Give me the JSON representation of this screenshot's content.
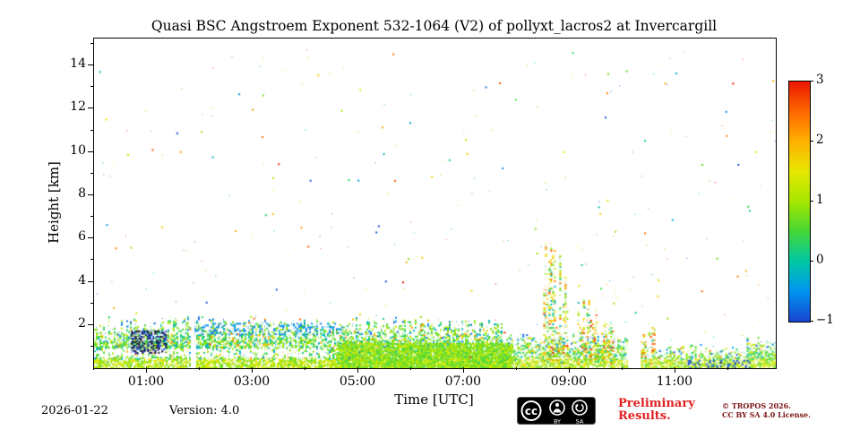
{
  "colors": {
    "preliminary_red": "#e02020",
    "copyright_red": "#7a1414",
    "axis_color": "#000000",
    "background": "#ffffff"
  },
  "footer": {
    "date": "2026-01-22",
    "version": "Version: 4.0",
    "preliminary": [
      "Preliminary",
      "Results."
    ],
    "tropos": [
      "© TROPOS 2026.",
      "CC BY SA 4.0 License."
    ],
    "cc_badge": {
      "cc": "cc",
      "by": "BY",
      "sa": "SA"
    }
  },
  "chart_data": {
    "type": "heatmap",
    "title": "Quasi BSC Angstroem Exponent 532-1064 (V2) of pollyxt_lacros2 at Invercargill",
    "xlabel": "Time [UTC]",
    "ylabel": "Height [km]",
    "xlim_hours_utc": [
      0,
      12.9
    ],
    "ylim_km": [
      0,
      15.25
    ],
    "x_major_ticks_h": [
      1,
      3,
      5,
      7,
      9,
      11
    ],
    "x_major_tick_labels": [
      "01:00",
      "03:00",
      "05:00",
      "07:00",
      "09:00",
      "11:00"
    ],
    "x_minor_ticks_h": [
      0,
      2,
      4,
      6,
      8,
      10,
      12
    ],
    "y_major_ticks_km": [
      2,
      4,
      6,
      8,
      10,
      12,
      14
    ],
    "y_minor_ticks_km": [
      1,
      3,
      5,
      7,
      9,
      11,
      13,
      15
    ],
    "value_name": "quasi backscatter Angstroem exponent 532-1064 nm",
    "value_range": [
      -1,
      3
    ],
    "colorbar_ticks": [
      3,
      2,
      1,
      0,
      -1
    ],
    "colorbar_tick_labels": [
      "3",
      "2",
      "1",
      "0",
      "−1"
    ],
    "grid": false,
    "legend": "colorbar right",
    "colormap": "jet-like",
    "colormap_stops": [
      [
        -1.0,
        [
          25,
          70,
          210
        ]
      ],
      [
        -0.5,
        [
          0,
          150,
          240
        ]
      ],
      [
        0.0,
        [
          0,
          200,
          165
        ]
      ],
      [
        0.5,
        [
          70,
          215,
          55
        ]
      ],
      [
        1.0,
        [
          165,
          230,
          0
        ]
      ],
      [
        1.5,
        [
          230,
          232,
          0
        ]
      ],
      [
        2.0,
        [
          255,
          178,
          0
        ]
      ],
      [
        2.5,
        [
          255,
          105,
          0
        ]
      ],
      [
        3.0,
        [
          235,
          25,
          0
        ]
      ]
    ],
    "under_color_rgb": [
      12,
      14,
      75
    ],
    "features": {
      "seed": 1337,
      "boundary_layer": {
        "description": "Speckled aerosol layer (Angstroem exponent mostly 0.2-1.4, green/yellow) from surface to ~2 km for 00:00-07:40 UTC, lowering to ~1.3 km until 10:05, ~0.9 km and sparser after 10:20, denser multicolour again after 12:20",
        "segments": [
          {
            "time_h": [
              0.0,
              7.7
            ],
            "top_km": 2.05,
            "density": 0.8
          },
          {
            "time_h": [
              7.7,
              10.1
            ],
            "top_km": 1.35,
            "density": 0.7
          },
          {
            "time_h": [
              10.35,
              12.35
            ],
            "top_km": 0.95,
            "density": 0.55
          },
          {
            "time_h": [
              12.35,
              12.9
            ],
            "top_km": 1.3,
            "density": 0.85
          }
        ]
      },
      "dense_patches": [
        {
          "time_h": [
            4.6,
            7.9
          ],
          "height_km": [
            0.0,
            1.2
          ],
          "density": 0.9,
          "value_range": [
            0.4,
            1.3
          ]
        }
      ],
      "low_value_patches": [
        {
          "time_h": [
            0.7,
            1.35
          ],
          "height_km": [
            0.75,
            1.8
          ],
          "value": -1.1,
          "density": 0.7,
          "note": "dark navy patch around 01:00 UTC"
        },
        {
          "time_h": [
            1.9,
            4.7
          ],
          "height_km": [
            1.6,
            2.15
          ],
          "value": -0.55,
          "density": 0.3,
          "note": "blue speckle at layer top"
        },
        {
          "time_h": [
            11.2,
            12.4
          ],
          "height_km": [
            0.05,
            0.45
          ],
          "value": -0.9,
          "density": 0.4,
          "note": "dark blue near surface"
        }
      ],
      "plumes": [
        {
          "time_h": [
            8.5,
            8.95
          ],
          "top_km": 6.3,
          "note": "tall speckled plume ~08:40"
        },
        {
          "time_h": [
            9.15,
            9.55
          ],
          "top_km": 3.6,
          "note": "orange towers ~09:20"
        },
        {
          "time_h": [
            9.6,
            9.85
          ],
          "top_km": 2.3
        },
        {
          "time_h": [
            10.35,
            10.6
          ],
          "top_km": 2.7
        }
      ],
      "data_gaps_h": [
        [
          1.82,
          1.9
        ],
        [
          10.1,
          10.35
        ]
      ],
      "scatter_noise_count": 320
    }
  }
}
